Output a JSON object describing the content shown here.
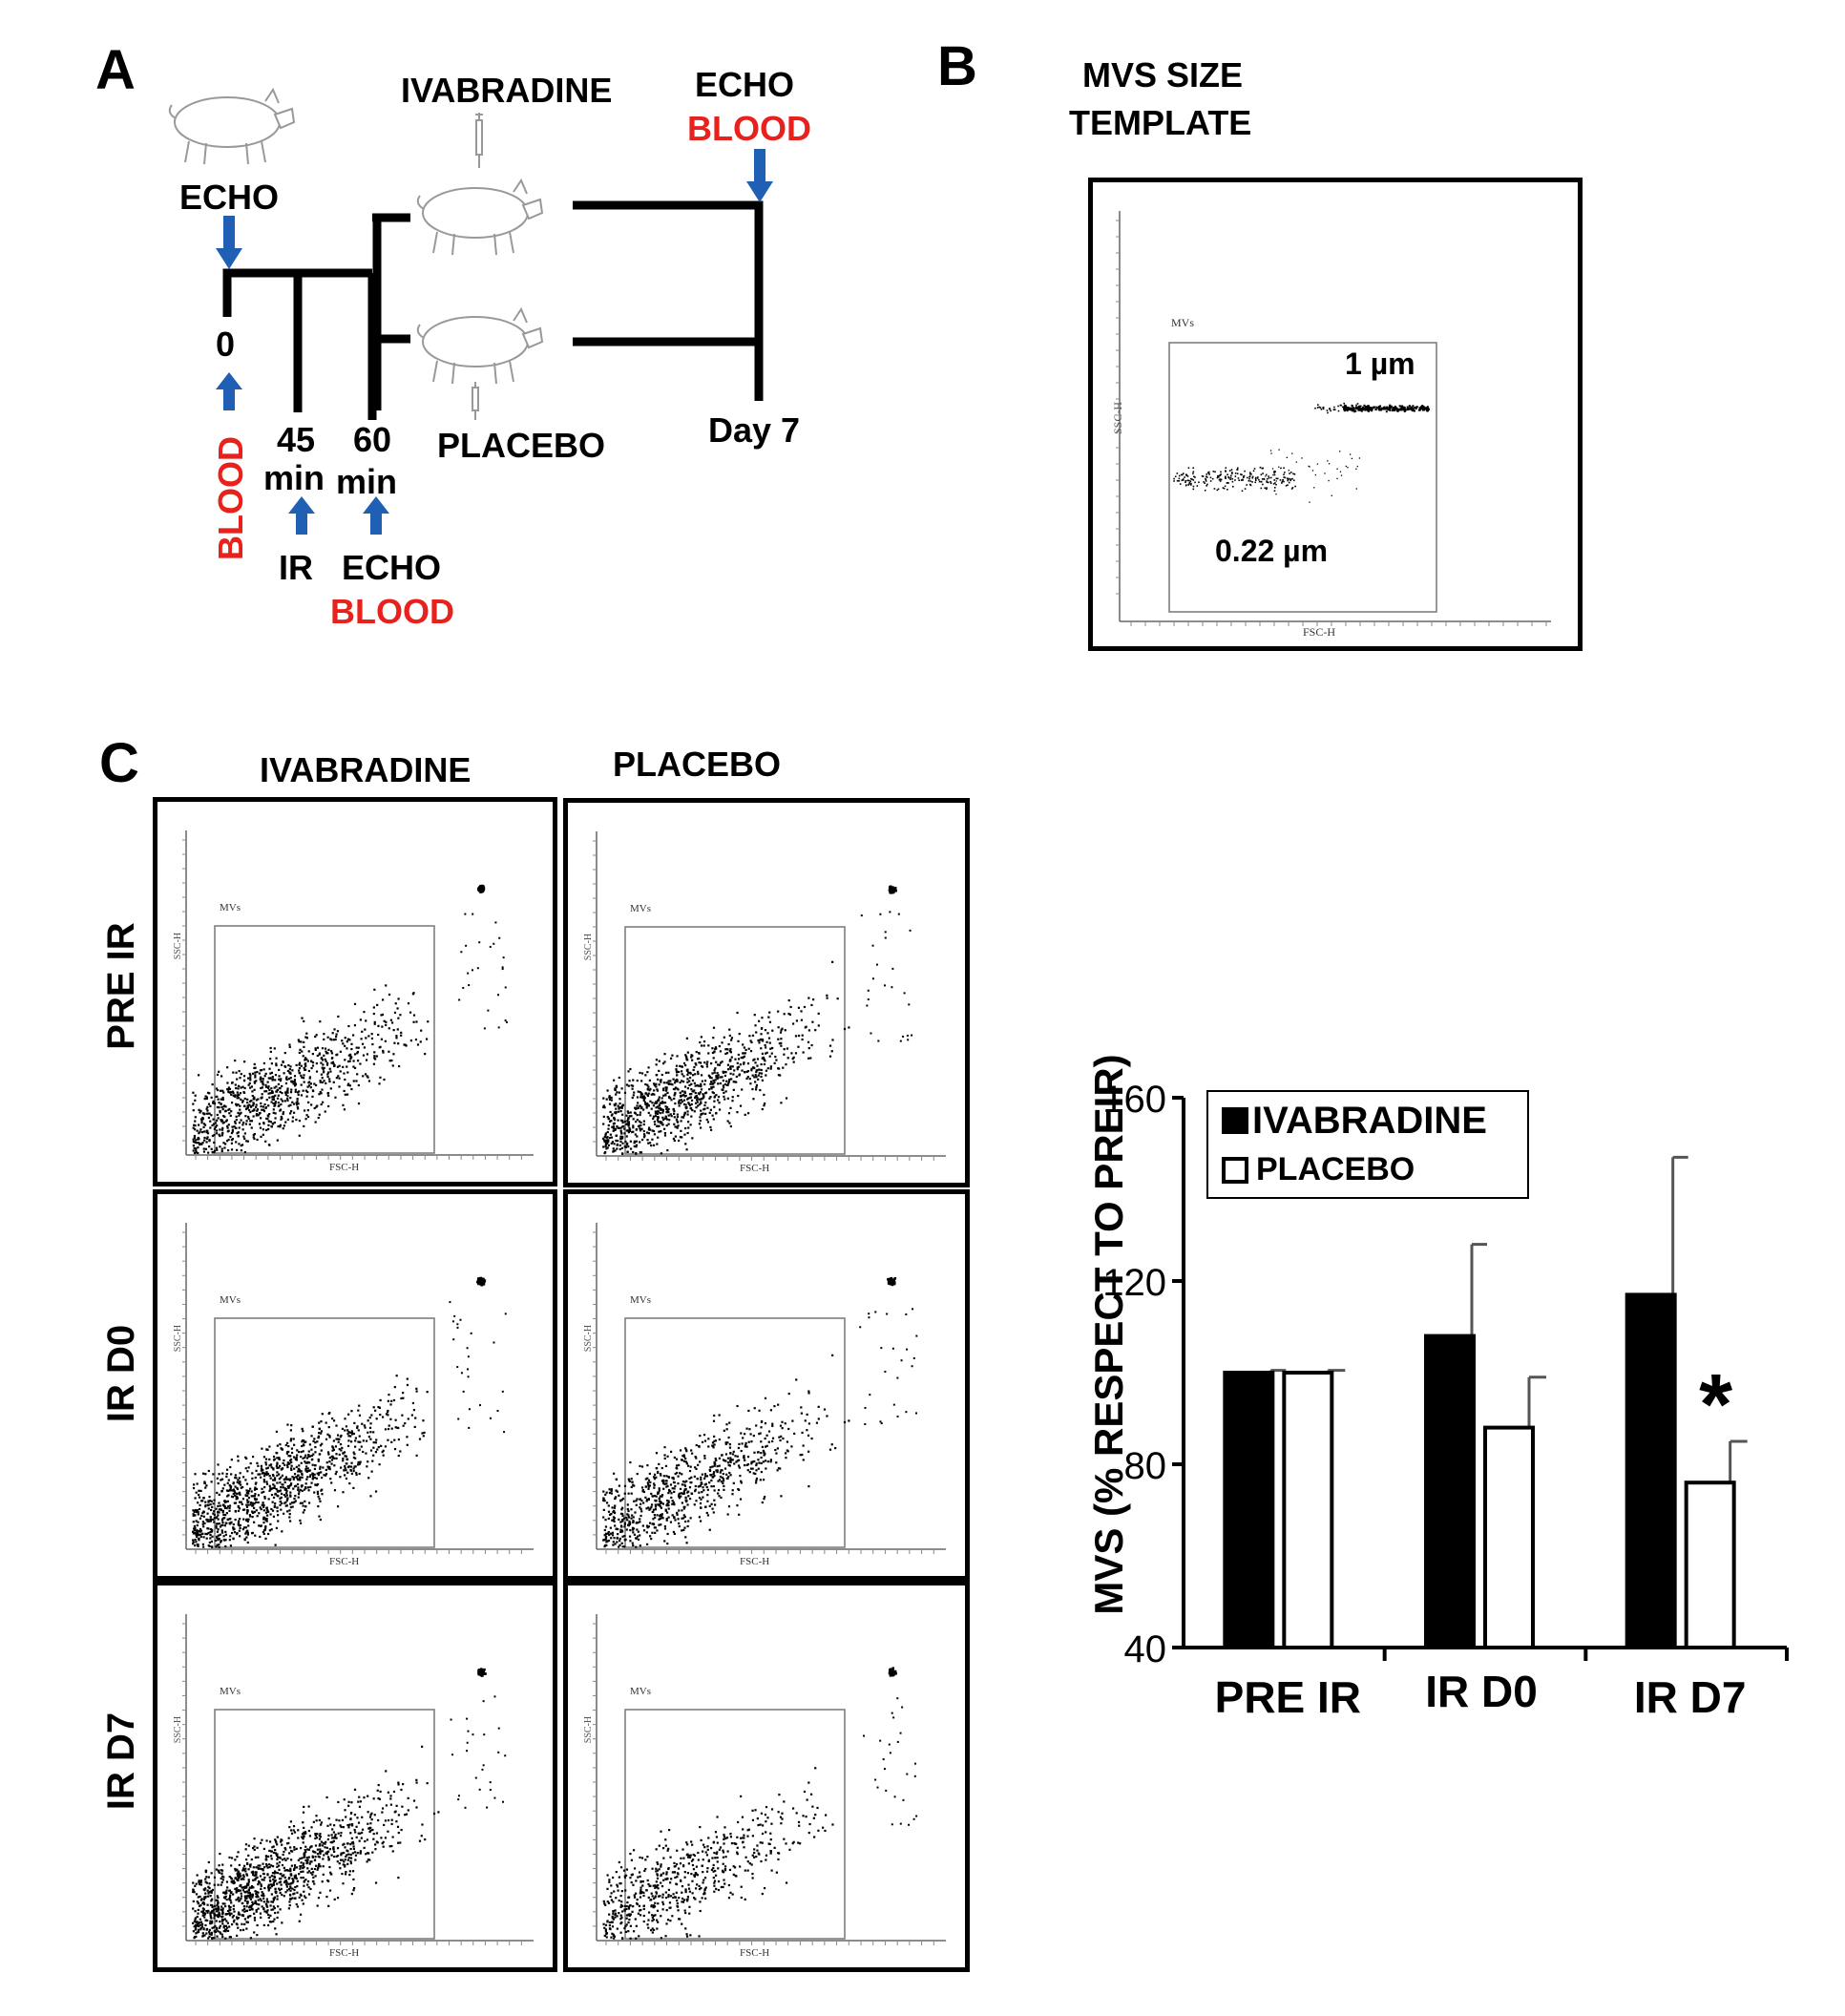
{
  "figure": {
    "panel_a": {
      "letter": "A",
      "labels": {
        "echo_start": "ECHO",
        "time_0": "0",
        "blood_start": "BLOOD",
        "time_45": "45",
        "time_45_unit": "min",
        "ir": "IR",
        "time_60": "60",
        "time_60_unit": "min",
        "echo_60": "ECHO",
        "blood_60": "BLOOD",
        "ivabradine": "IVABRADINE",
        "placebo": "PLACEBO",
        "echo_end": "ECHO",
        "blood_end": "BLOOD",
        "day7": "Day 7"
      }
    },
    "panel_b": {
      "letter": "B",
      "title_line1": "MVS SIZE",
      "title_line2": "TEMPLATE",
      "gate_label": "MVs",
      "x_axis": "FSC-H",
      "y_axis": "SSC-H",
      "size_large": "1 µm",
      "size_small": "0.22 µm"
    },
    "panel_c": {
      "letter": "C",
      "col_headers": [
        "IVABRADINE",
        "PLACEBO"
      ],
      "row_headers": [
        "PRE IR",
        "IR D0",
        "IR D7"
      ],
      "gate_label": "MVs",
      "x_axis": "FSC-H",
      "y_axis": "SSC-H",
      "plot_density": [
        [
          900,
          1000
        ],
        [
          1100,
          800
        ],
        [
          1200,
          600
        ]
      ]
    }
  },
  "colors": {
    "red_text": "#e8211d",
    "arrow_blue": "#1f5fb4",
    "bar_fill": "#000000",
    "bar_open": "#ffffff"
  },
  "chart_data": {
    "type": "bar",
    "title": "",
    "ylabel": "MVS (% RESPECT TO PREIR)",
    "xlabel": "",
    "categories": [
      "PRE IR",
      "IR D0",
      "IR D7"
    ],
    "ylim": [
      40,
      160
    ],
    "yticks": [
      "40",
      "80",
      "120",
      "160"
    ],
    "ytick_values": [
      40,
      80,
      120,
      160
    ],
    "series": [
      {
        "name": "IVABRADINE",
        "values": [
          100,
          108,
          117
        ],
        "errors": [
          0.5,
          20,
          30
        ],
        "fill": "#000000"
      },
      {
        "name": "PLACEBO",
        "values": [
          100,
          88,
          76
        ],
        "errors": [
          0.5,
          11,
          9
        ],
        "fill": "#ffffff"
      }
    ],
    "legend_position": "top-left",
    "annotations": [
      {
        "category": "IR D7",
        "series": "PLACEBO",
        "text": "*"
      }
    ]
  }
}
